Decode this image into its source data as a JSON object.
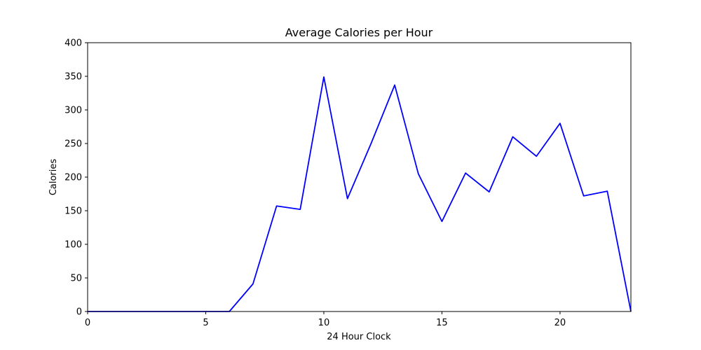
{
  "chart_data": {
    "type": "line",
    "title": "Average Calories per Hour",
    "xlabel": "24 Hour Clock",
    "ylabel": "Calories",
    "xlim": [
      0,
      23
    ],
    "ylim": [
      0,
      400
    ],
    "x_ticks": [
      0,
      5,
      10,
      15,
      20
    ],
    "x_tick_labels": [
      "0",
      "5",
      "10",
      "15",
      "20"
    ],
    "y_ticks": [
      0,
      50,
      100,
      150,
      200,
      250,
      300,
      350,
      400
    ],
    "y_tick_labels": [
      "0",
      "50",
      "100",
      "150",
      "200",
      "250",
      "300",
      "350",
      "400"
    ],
    "grid": false,
    "series": [
      {
        "color": "#0000ff",
        "x": [
          0,
          1,
          2,
          3,
          4,
          5,
          6,
          7,
          8,
          9,
          10,
          11,
          12,
          13,
          14,
          15,
          16,
          17,
          18,
          19,
          20,
          21,
          22,
          23
        ],
        "values": [
          0,
          0,
          0,
          0,
          0,
          0,
          0,
          41,
          157,
          152,
          349,
          168,
          250,
          337,
          205,
          134,
          206,
          178,
          260,
          231,
          280,
          172,
          179,
          0
        ]
      }
    ]
  }
}
